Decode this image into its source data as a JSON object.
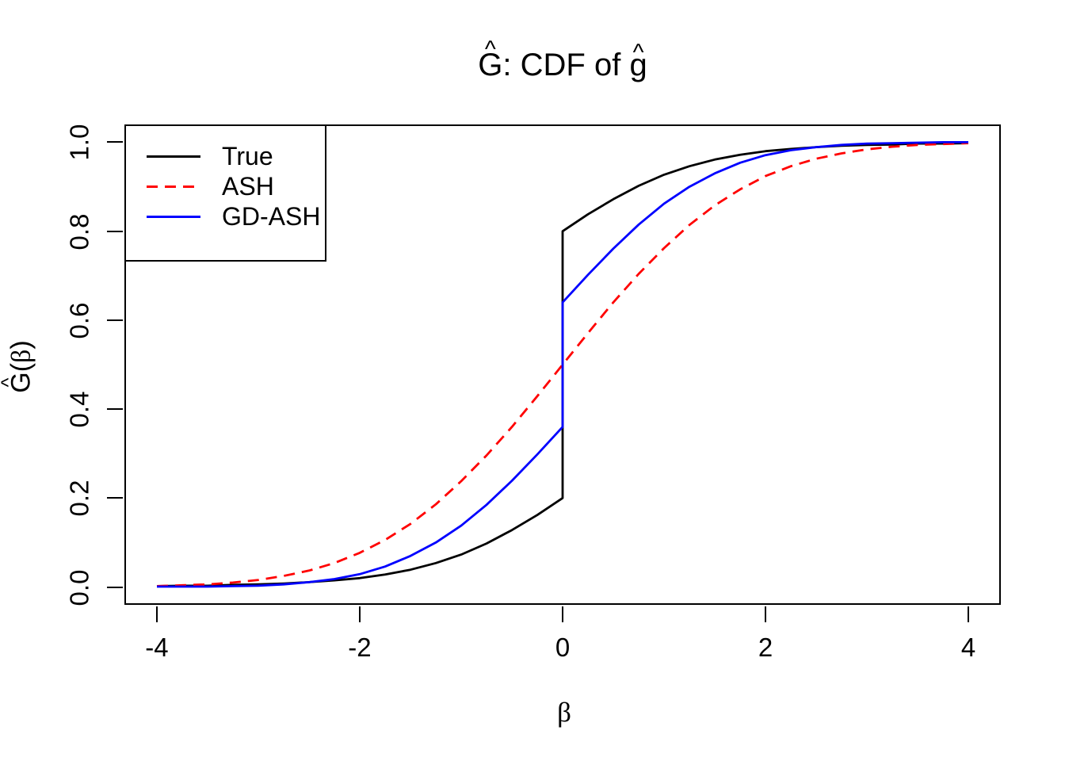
{
  "title": {
    "G": "G",
    "hat": "^",
    "mid": ": CDF of ",
    "g": "g",
    "full": "Ĝ: CDF of ĝ"
  },
  "axes": {
    "x": {
      "label": "β",
      "ticks": [
        "-4",
        "-2",
        "0",
        "2",
        "4"
      ],
      "tick_values": [
        -4,
        -2,
        0,
        2,
        4
      ]
    },
    "y": {
      "label_G": "G",
      "label_hat": "^",
      "label_open": "(",
      "label_beta": "β",
      "label_close": ")",
      "label_full": "Ĝ(β)",
      "ticks": [
        "0.0",
        "0.2",
        "0.4",
        "0.6",
        "0.8",
        "1.0"
      ],
      "tick_values": [
        0,
        0.2,
        0.4,
        0.6,
        0.8,
        1.0
      ]
    }
  },
  "legend": {
    "items": [
      {
        "label": "True",
        "color": "#000000",
        "style": "solid"
      },
      {
        "label": "ASH",
        "color": "#FF0000",
        "style": "dashed"
      },
      {
        "label": "GD-ASH",
        "color": "#0000FF",
        "style": "solid"
      }
    ]
  },
  "chart_data": {
    "type": "line",
    "title": "Ĝ: CDF of ĝ",
    "xlabel": "β",
    "ylabel": "Ĝ(β)",
    "xlim": [
      -4,
      4
    ],
    "ylim": [
      0,
      1
    ],
    "grid": false,
    "legend_position": "topleft",
    "axis_expansion": 0.04,
    "series": [
      {
        "name": "True",
        "color": "#000000",
        "style": "solid",
        "jump_at_zero": [
          0.2,
          0.8
        ],
        "points": [
          [
            -4,
            0.002
          ],
          [
            -3.75,
            0.003
          ],
          [
            -3.5,
            0.003
          ],
          [
            -3.25,
            0.005
          ],
          [
            -3,
            0.006
          ],
          [
            -2.75,
            0.008
          ],
          [
            -2.5,
            0.011
          ],
          [
            -2.25,
            0.015
          ],
          [
            -2,
            0.02
          ],
          [
            -1.75,
            0.028
          ],
          [
            -1.5,
            0.039
          ],
          [
            -1.25,
            0.054
          ],
          [
            -1,
            0.073
          ],
          [
            -0.75,
            0.098
          ],
          [
            -0.5,
            0.128
          ],
          [
            -0.25,
            0.162
          ],
          [
            0,
            0.2
          ],
          [
            0,
            0.8
          ],
          [
            0.25,
            0.838
          ],
          [
            0.5,
            0.872
          ],
          [
            0.75,
            0.902
          ],
          [
            1,
            0.927
          ],
          [
            1.25,
            0.946
          ],
          [
            1.5,
            0.961
          ],
          [
            1.75,
            0.972
          ],
          [
            2,
            0.98
          ],
          [
            2.25,
            0.985
          ],
          [
            2.5,
            0.989
          ],
          [
            2.75,
            0.992
          ],
          [
            3,
            0.994
          ],
          [
            3.25,
            0.995
          ],
          [
            3.5,
            0.997
          ],
          [
            3.75,
            0.997
          ],
          [
            4,
            0.998
          ]
        ]
      },
      {
        "name": "ASH",
        "color": "#FF0000",
        "style": "dashed",
        "jump_at_zero": null,
        "points": [
          [
            -4,
            0.002
          ],
          [
            -3.75,
            0.004
          ],
          [
            -3.5,
            0.006
          ],
          [
            -3.25,
            0.01
          ],
          [
            -3,
            0.016
          ],
          [
            -2.75,
            0.025
          ],
          [
            -2.5,
            0.037
          ],
          [
            -2.25,
            0.054
          ],
          [
            -2,
            0.077
          ],
          [
            -1.75,
            0.106
          ],
          [
            -1.5,
            0.142
          ],
          [
            -1.25,
            0.186
          ],
          [
            -1,
            0.238
          ],
          [
            -0.75,
            0.296
          ],
          [
            -0.5,
            0.36
          ],
          [
            -0.25,
            0.429
          ],
          [
            0,
            0.5
          ],
          [
            0.25,
            0.571
          ],
          [
            0.5,
            0.64
          ],
          [
            0.75,
            0.704
          ],
          [
            1,
            0.762
          ],
          [
            1.25,
            0.814
          ],
          [
            1.5,
            0.858
          ],
          [
            1.75,
            0.894
          ],
          [
            2,
            0.924
          ],
          [
            2.25,
            0.946
          ],
          [
            2.5,
            0.963
          ],
          [
            2.75,
            0.975
          ],
          [
            3,
            0.984
          ],
          [
            3.25,
            0.99
          ],
          [
            3.5,
            0.994
          ],
          [
            3.75,
            0.996
          ],
          [
            4,
            0.998
          ]
        ]
      },
      {
        "name": "GD-ASH",
        "color": "#0000FF",
        "style": "solid",
        "jump_at_zero": [
          0.36,
          0.64
        ],
        "points": [
          [
            -4,
            0.001
          ],
          [
            -3.75,
            0.001
          ],
          [
            -3.5,
            0.001
          ],
          [
            -3.25,
            0.002
          ],
          [
            -3,
            0.003
          ],
          [
            -2.75,
            0.006
          ],
          [
            -2.5,
            0.011
          ],
          [
            -2.25,
            0.018
          ],
          [
            -2,
            0.029
          ],
          [
            -1.75,
            0.046
          ],
          [
            -1.5,
            0.07
          ],
          [
            -1.25,
            0.1
          ],
          [
            -1,
            0.138
          ],
          [
            -0.75,
            0.185
          ],
          [
            -0.5,
            0.239
          ],
          [
            -0.25,
            0.298
          ],
          [
            0,
            0.36
          ],
          [
            0,
            0.64
          ],
          [
            0.25,
            0.702
          ],
          [
            0.5,
            0.761
          ],
          [
            0.75,
            0.815
          ],
          [
            1,
            0.862
          ],
          [
            1.25,
            0.9
          ],
          [
            1.5,
            0.93
          ],
          [
            1.75,
            0.954
          ],
          [
            2,
            0.971
          ],
          [
            2.25,
            0.982
          ],
          [
            2.5,
            0.989
          ],
          [
            2.75,
            0.994
          ],
          [
            3,
            0.997
          ],
          [
            3.25,
            0.998
          ],
          [
            3.5,
            0.999
          ],
          [
            3.75,
            1.0
          ],
          [
            4,
            1.0
          ]
        ]
      }
    ]
  }
}
